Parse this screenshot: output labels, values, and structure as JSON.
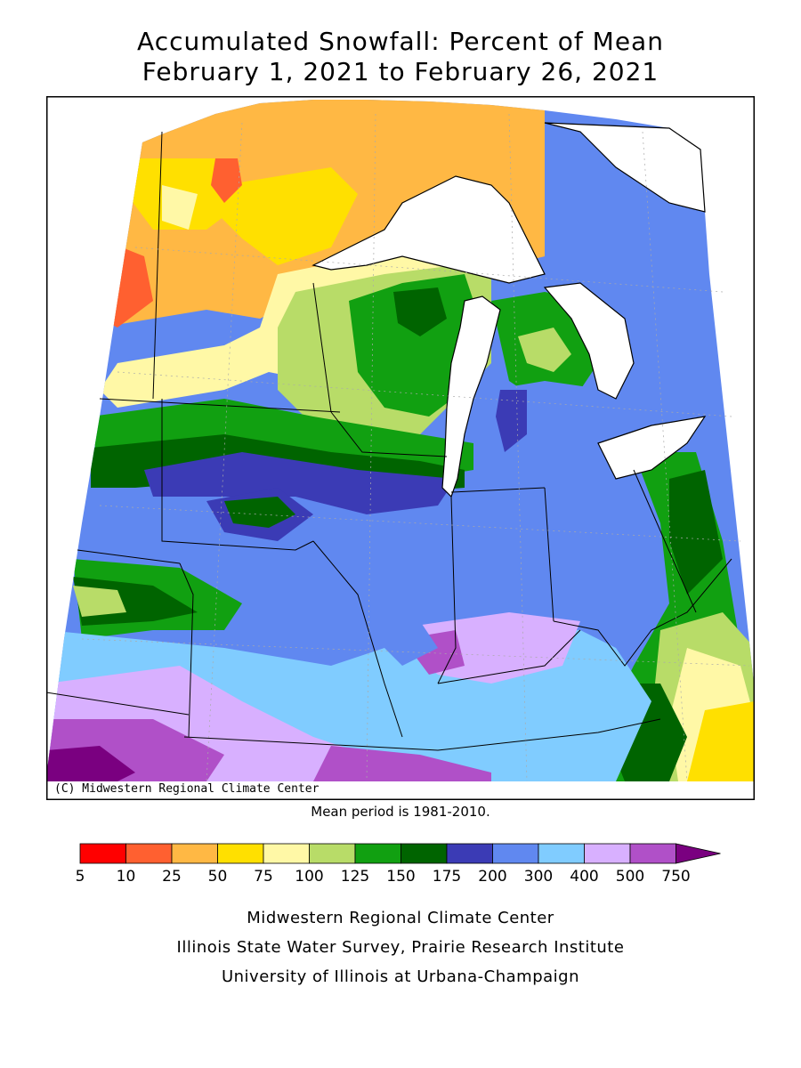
{
  "title": {
    "line1": "Accumulated Snowfall: Percent of Mean",
    "line2": "February 1, 2021 to February 26, 2021"
  },
  "credit": "(C) Midwestern Regional Climate Center",
  "note": "Mean period is 1981-2010.",
  "legend": {
    "ticks": [
      "5",
      "10",
      "25",
      "50",
      "75",
      "100",
      "125",
      "150",
      "175",
      "200",
      "300",
      "400",
      "500",
      "750"
    ],
    "colors": [
      "#ff0000",
      "#ff6030",
      "#ffb844",
      "#ffe000",
      "#fff8a6",
      "#b8dc68",
      "#11a011",
      "#006400",
      "#3b3bb5",
      "#6088f0",
      "#80ccff",
      "#d8b0ff",
      "#b050c8"
    ],
    "overflow_color": "#7a0080"
  },
  "footer": {
    "line1": "Midwestern Regional Climate Center",
    "line2": "Illinois State Water Survey, Prairie Research Institute",
    "line3": "University of Illinois at Urbana-Champaign"
  },
  "map": {
    "frame_color": "#000000",
    "lake_color": "#ffffff"
  }
}
